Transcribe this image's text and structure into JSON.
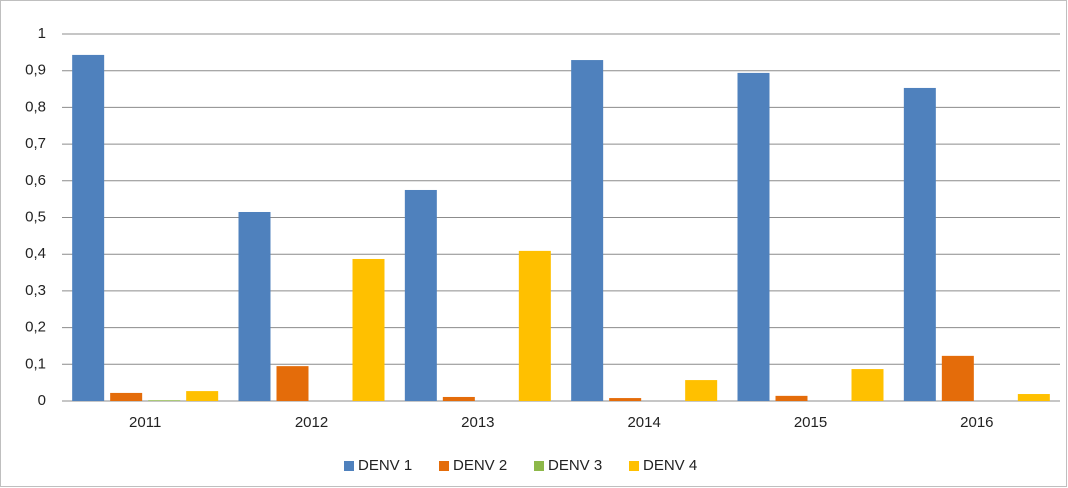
{
  "chart_data": {
    "type": "bar",
    "categories": [
      "2011",
      "2012",
      "2013",
      "2014",
      "2015",
      "2016"
    ],
    "series": [
      {
        "name": "DENV 1",
        "color": "#4f81bd",
        "values": [
          0.943,
          0.515,
          0.575,
          0.929,
          0.894,
          0.853
        ]
      },
      {
        "name": "DENV 2",
        "color": "#e46c0a",
        "values": [
          0.022,
          0.095,
          0.011,
          0.008,
          0.014,
          0.123
        ]
      },
      {
        "name": "DENV 3",
        "color": "#8db849",
        "values": [
          0.002,
          0,
          0,
          0,
          0,
          0
        ]
      },
      {
        "name": "DENV 4",
        "color": "#ffc000",
        "values": [
          0.027,
          0.387,
          0.409,
          0.057,
          0.087,
          0.019
        ]
      }
    ],
    "ylim": [
      0,
      1
    ],
    "yticks": [
      0,
      {
        "value": 0.1,
        "label": "0,1"
      },
      {
        "value": 0.2,
        "label": "0,2"
      },
      {
        "value": 0.3,
        "label": "0,3"
      },
      {
        "value": 0.4,
        "label": "0,4"
      },
      {
        "value": 0.5,
        "label": "0,5"
      },
      {
        "value": 0.6,
        "label": "0,6"
      },
      {
        "value": 0.7,
        "label": "0,7"
      },
      {
        "value": 0.8,
        "label": "0,8"
      },
      {
        "value": 0.9,
        "label": "0,9"
      },
      1
    ],
    "grid": true,
    "legend": "bottom"
  }
}
